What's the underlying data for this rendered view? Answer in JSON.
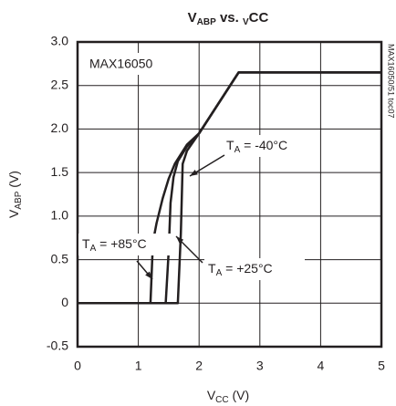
{
  "chart_data": {
    "type": "line",
    "title": [
      "V",
      "ABP",
      " vs. ",
      "V",
      "CC"
    ],
    "x_label": [
      "V",
      "CC",
      " (V)"
    ],
    "y_label": [
      "V",
      "ABP",
      " (V)"
    ],
    "device_label": "MAX16050",
    "figure_id": "MAX16050/51 toc07",
    "xlim": [
      0,
      5
    ],
    "xticks": [
      0,
      1,
      2,
      3,
      4,
      5
    ],
    "ylim": [
      -0.5,
      3.0
    ],
    "yticks": [
      -0.5,
      0,
      0.5,
      {
        "value": 1.0,
        "label": "1.0"
      },
      1.5,
      {
        "value": 2.0,
        "label": "2.0"
      },
      2.5,
      {
        "value": 3.0,
        "label": "3.0"
      }
    ],
    "grid": true,
    "series": [
      {
        "name": [
          "T",
          "A",
          " = +85°C"
        ],
        "color": "#231f20",
        "x": [
          0,
          1.2,
          1.24,
          1.3,
          1.4,
          1.5,
          1.6,
          1.8,
          2.0,
          2.65,
          5
        ],
        "values": [
          0,
          0,
          0.7,
          0.92,
          1.2,
          1.43,
          1.6,
          1.82,
          1.95,
          2.65,
          2.65
        ]
      },
      {
        "name": [
          "T",
          "A",
          " = +25°C"
        ],
        "color": "#231f20",
        "x": [
          0,
          1.45,
          1.5,
          1.53,
          1.58,
          1.65,
          1.8,
          2.0,
          2.65,
          5
        ],
        "values": [
          0,
          0,
          0.6,
          1.15,
          1.45,
          1.63,
          1.8,
          1.95,
          2.65,
          2.65
        ]
      },
      {
        "name": [
          "T",
          "A",
          " = -40°C"
        ],
        "color": "#231f20",
        "x": [
          0,
          1.65,
          1.7,
          1.73,
          1.8,
          2.0,
          2.65,
          5
        ],
        "values": [
          0,
          0,
          0.8,
          1.6,
          1.75,
          1.95,
          2.65,
          2.65
        ]
      }
    ]
  }
}
